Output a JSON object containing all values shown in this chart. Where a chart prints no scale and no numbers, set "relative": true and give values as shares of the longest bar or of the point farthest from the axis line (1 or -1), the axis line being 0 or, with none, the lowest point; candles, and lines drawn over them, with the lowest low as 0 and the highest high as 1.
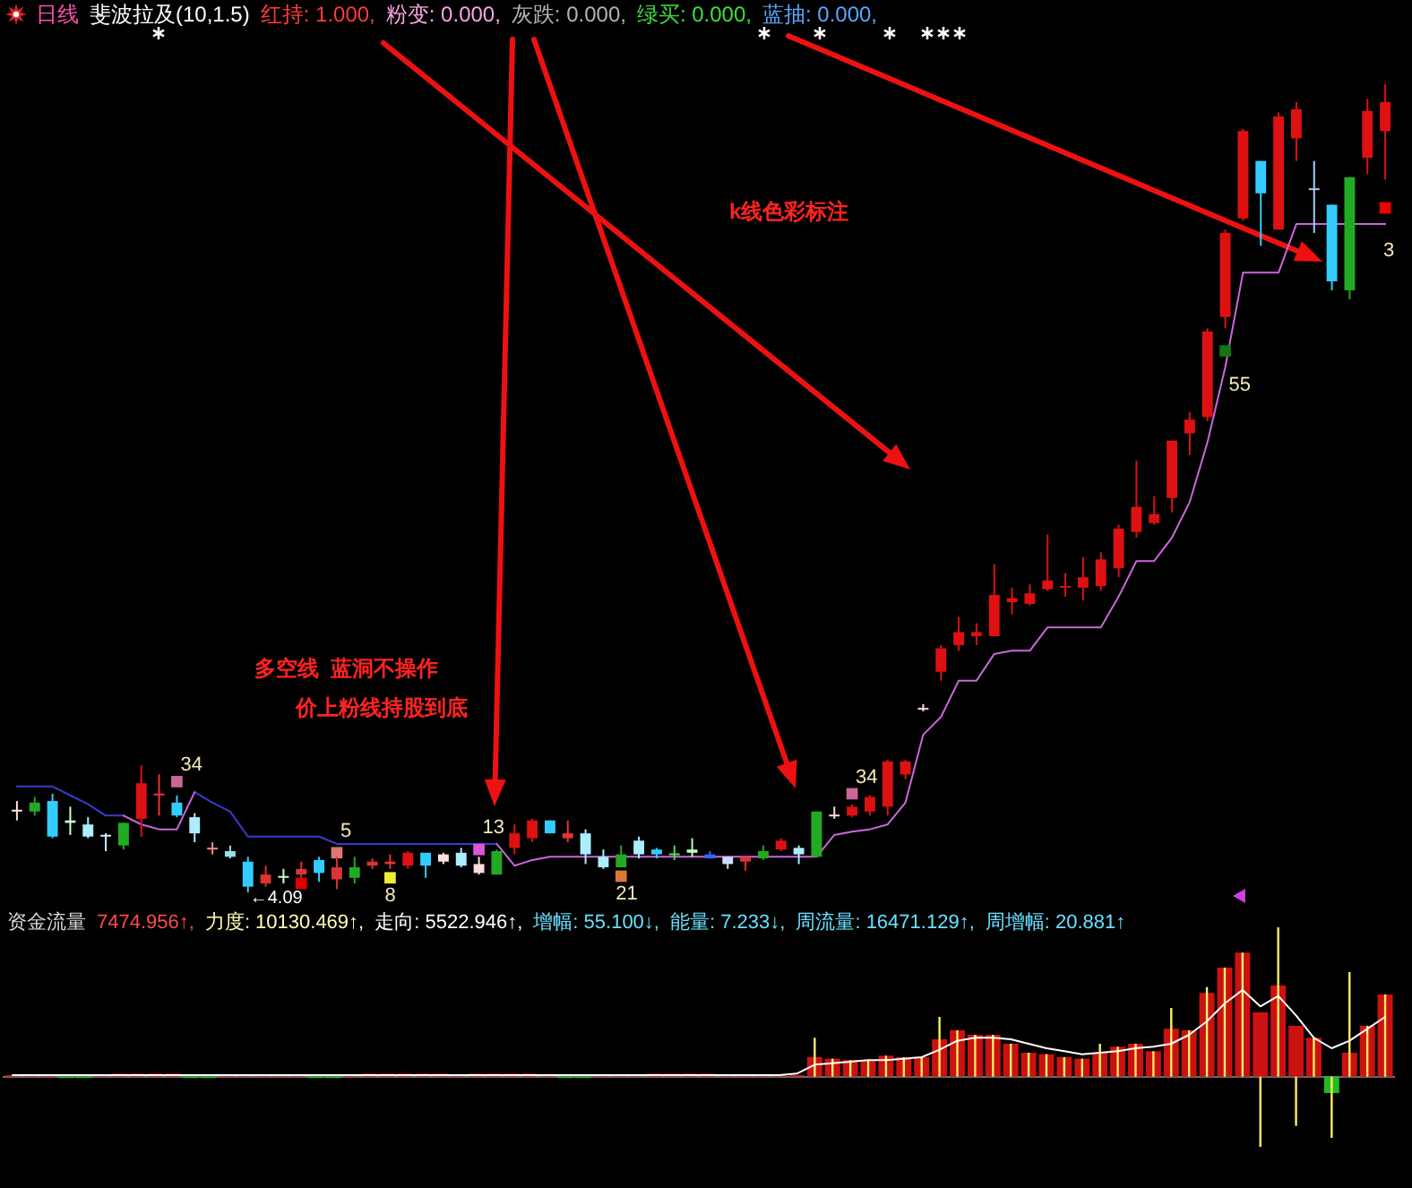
{
  "chart_data": [
    {
      "type": "candlestick",
      "title": "日线",
      "subtitle": "斐波拉及(10,1.5)",
      "relative": true,
      "categories": [
        null,
        null,
        null,
        null,
        null,
        null,
        null,
        null,
        null,
        null,
        null,
        null,
        null,
        null,
        null,
        null,
        null,
        null,
        null,
        null,
        null,
        null,
        null,
        null,
        null,
        null,
        null,
        null,
        null,
        null,
        null,
        null,
        null,
        null,
        null,
        null,
        null,
        null,
        null,
        null,
        null,
        null,
        null,
        null,
        null,
        null,
        null,
        null,
        null,
        null,
        null,
        null,
        null,
        null,
        null,
        null,
        null,
        null,
        null,
        null,
        null,
        null,
        null,
        null,
        null,
        null,
        null,
        null,
        null,
        null,
        null,
        null,
        null,
        null,
        null,
        null,
        null,
        null
      ],
      "ohlc": [
        [
          0.102,
          0.113,
          0.089,
          0.1
        ],
        [
          0.111,
          0.118,
          0.095,
          0.1
        ],
        [
          0.113,
          0.122,
          0.067,
          0.069
        ],
        [
          0.089,
          0.106,
          0.071,
          0.086
        ],
        [
          0.084,
          0.093,
          0.067,
          0.069
        ],
        [
          0.071,
          0.073,
          0.051,
          0.069
        ],
        [
          0.086,
          0.086,
          0.053,
          0.058
        ],
        [
          0.091,
          0.157,
          0.069,
          0.135
        ],
        [
          0.12,
          0.146,
          0.095,
          0.122
        ],
        [
          0.111,
          0.12,
          0.093,
          0.095
        ],
        [
          0.093,
          0.098,
          0.062,
          0.073
        ],
        [
          0.053,
          0.062,
          0.047,
          0.055
        ],
        [
          0.051,
          0.058,
          0.042,
          0.044
        ],
        [
          0.038,
          0.044,
          0,
          0.007
        ],
        [
          0.011,
          0.033,
          0.007,
          0.022
        ],
        [
          0.02,
          0.029,
          0.011,
          0.018
        ],
        [
          0.022,
          0.038,
          0.018,
          0.029
        ],
        [
          0.04,
          0.044,
          0.013,
          0.024
        ],
        [
          0.016,
          0.044,
          0.004,
          0.031
        ],
        [
          0.031,
          0.044,
          0.011,
          0.018
        ],
        [
          0.033,
          0.042,
          0.029,
          0.038
        ],
        [
          0.035,
          0.047,
          0.029,
          0.038
        ],
        [
          0.033,
          0.051,
          0.029,
          0.049
        ],
        [
          0.049,
          0.049,
          0.018,
          0.033
        ],
        [
          0.047,
          0.049,
          0.035,
          0.038
        ],
        [
          0.049,
          0.055,
          0.031,
          0.033
        ],
        [
          0.035,
          0.044,
          0.022,
          0.024
        ],
        [
          0.051,
          0.053,
          0.022,
          0.022
        ],
        [
          0.055,
          0.084,
          0.047,
          0.073
        ],
        [
          0.067,
          0.091,
          0.062,
          0.089
        ],
        [
          0.089,
          0.089,
          0.073,
          0.073
        ],
        [
          0.067,
          0.089,
          0.062,
          0.073
        ],
        [
          0.073,
          0.078,
          0.035,
          0.047
        ],
        [
          0.044,
          0.053,
          0.029,
          0.031
        ],
        [
          0.047,
          0.058,
          0.031,
          0.031
        ],
        [
          0.064,
          0.069,
          0.042,
          0.047
        ],
        [
          0.053,
          0.055,
          0.042,
          0.047
        ],
        [
          0.048,
          0.058,
          0.04,
          0.046
        ],
        [
          0.053,
          0.067,
          0.044,
          0.049
        ],
        [
          0.047,
          0.051,
          0.042,
          0.042
        ],
        [
          0.044,
          0.044,
          0.029,
          0.035
        ],
        [
          0.038,
          0.044,
          0.027,
          0.044
        ],
        [
          0.051,
          0.058,
          0.04,
          0.042
        ],
        [
          0.053,
          0.067,
          0.051,
          0.064
        ],
        [
          0.055,
          0.058,
          0.035,
          0.047
        ],
        [
          0.1,
          0.1,
          0.044,
          0.044
        ],
        [
          0.096,
          0.106,
          0.091,
          0.094
        ],
        [
          0.095,
          0.109,
          0.093,
          0.106
        ],
        [
          0.1,
          0.12,
          0.095,
          0.118
        ],
        [
          0.106,
          0.164,
          0.095,
          0.162
        ],
        [
          0.146,
          0.164,
          0.14,
          0.162
        ],
        [
          0.228,
          0.233,
          0.224,
          0.226
        ],
        [
          0.273,
          0.306,
          0.262,
          0.302
        ],
        [
          0.306,
          0.341,
          0.299,
          0.322
        ],
        [
          0.317,
          0.333,
          0.306,
          0.322
        ],
        [
          0.317,
          0.406,
          0.317,
          0.368
        ],
        [
          0.359,
          0.377,
          0.344,
          0.364
        ],
        [
          0.357,
          0.381,
          0.355,
          0.37
        ],
        [
          0.375,
          0.443,
          0.373,
          0.386
        ],
        [
          0.377,
          0.395,
          0.366,
          0.379
        ],
        [
          0.377,
          0.415,
          0.361,
          0.39
        ],
        [
          0.379,
          0.421,
          0.373,
          0.412
        ],
        [
          0.401,
          0.455,
          0.39,
          0.45
        ],
        [
          0.446,
          0.534,
          0.439,
          0.477
        ],
        [
          0.457,
          0.49,
          0.455,
          0.468
        ],
        [
          0.488,
          0.559,
          0.47,
          0.559
        ],
        [
          0.568,
          0.594,
          0.541,
          0.585
        ],
        [
          0.588,
          0.698,
          0.583,
          0.694
        ],
        [
          0.712,
          0.82,
          0.698,
          0.816
        ],
        [
          0.834,
          0.945,
          0.831,
          0.942
        ],
        [
          0.905,
          0.905,
          0.8,
          0.865
        ],
        [
          0.82,
          0.965,
          0.82,
          0.96
        ],
        [
          0.933,
          0.978,
          0.905,
          0.969
        ],
        [
          0.871,
          0.905,
          0.816,
          0.869
        ],
        [
          0.851,
          0.851,
          0.745,
          0.756
        ],
        [
          0.885,
          0.885,
          0.734,
          0.745
        ],
        [
          0.909,
          0.982,
          0.889,
          0.967
        ],
        [
          0.942,
          1,
          0.882,
          0.978
        ]
      ],
      "colors": [
        "#ffdddd",
        "#22aa22",
        "#33ccff",
        "#ccffcc",
        "#aaeeff",
        "#cceeff",
        "#22aa22",
        "#dd1111",
        "#ee3333",
        "#33ccff",
        "#aaeeff",
        "#ff8888",
        "#99ddee",
        "#33ccff",
        "#dd3333",
        "#ccffcc",
        "#dd3333",
        "#33ccff",
        "#dd3333",
        "#22aa22",
        "#dd3333",
        "#ee3333",
        "#dd1111",
        "#33ccff",
        "#ffdddd",
        "#aaeeff",
        "#ffdddd",
        "#22aa22",
        "#dd1111",
        "#dd1111",
        "#33ccff",
        "#ee3333",
        "#aaeeff",
        "#aaeeff",
        "#22aa22",
        "#aaeeff",
        "#33ccff",
        "#55dd55",
        "#bbffbb",
        "#3366ff",
        "#ccddff",
        "#dd3333",
        "#22aa22",
        "#dd1111",
        "#aaeeff",
        "#22aa22",
        "#ffdddd",
        "#dd1111",
        "#dd1111",
        "#dd1111",
        "#dd1111",
        "#ffdddd",
        "#dd1111",
        "#dd1111",
        "#dd1111",
        "#dd1111",
        "#dd1111",
        "#dd1111",
        "#dd1111",
        "#dd1111",
        "#dd1111",
        "#dd1111",
        "#dd1111",
        "#dd1111",
        "#dd1111",
        "#dd1111",
        "#dd1111",
        "#dd1111",
        "#dd1111",
        "#dd1111",
        "#33ccff",
        "#dd1111",
        "#dd1111",
        "#aaccff",
        "#33ccff",
        "#22aa22",
        "#dd1111",
        "#dd1111"
      ],
      "series": [
        {
          "type": "line",
          "color": "#3a3ad0",
          "values": [
            0.131,
            0.131,
            0.131,
            0.12,
            0.109,
            0.095,
            0.095,
            null,
            null,
            null,
            0.124,
            0.111,
            0.1,
            0.069,
            0.069,
            0.069,
            0.069,
            0.069,
            0.06,
            0.06,
            0.06,
            0.06,
            0.06,
            0.06,
            0.06,
            0.06,
            0.06,
            0.06,
            null,
            null,
            null,
            null,
            null,
            null,
            null,
            null,
            null,
            null,
            null,
            null,
            null,
            null,
            null,
            null,
            null,
            null,
            null,
            null,
            null,
            null,
            null,
            null,
            null,
            null,
            null,
            null,
            null,
            null,
            null,
            null,
            null,
            null,
            null,
            null,
            null,
            null,
            null,
            null,
            null,
            null,
            null,
            null,
            null,
            null,
            null,
            null,
            null,
            null
          ]
        },
        {
          "type": "line",
          "color": "#cc66dd",
          "values": [
            null,
            null,
            null,
            null,
            null,
            null,
            0.095,
            0.084,
            0.078,
            0.078,
            0.124,
            null,
            null,
            null,
            null,
            null,
            null,
            null,
            null,
            null,
            null,
            null,
            null,
            null,
            null,
            null,
            null,
            0.06,
            0.033,
            0.04,
            0.044,
            0.044,
            0.044,
            0.044,
            0.044,
            0.044,
            0.044,
            0.044,
            0.044,
            0.044,
            0.044,
            0.044,
            0.044,
            0.044,
            0.044,
            0.044,
            0.071,
            0.075,
            0.078,
            0.084,
            0.111,
            0.195,
            0.217,
            0.262,
            0.262,
            0.295,
            0.299,
            0.299,
            0.328,
            0.328,
            0.328,
            0.328,
            0.366,
            0.41,
            0.41,
            0.439,
            0.483,
            0.557,
            0.65,
            0.767,
            0.767,
            0.767,
            0.827,
            0.827,
            0.827,
            0.827,
            0.827,
            0.827
          ]
        },
        {
          "type": "scatter",
          "marker": "square",
          "colors": [
            null,
            null,
            null,
            null,
            null,
            null,
            null,
            null,
            null,
            "#cc6699",
            null,
            null,
            null,
            null,
            null,
            null,
            "#dd0000",
            null,
            "#dd7777",
            null,
            null,
            "#eeee33",
            null,
            null,
            null,
            null,
            "#dd55dd",
            null,
            null,
            null,
            null,
            null,
            null,
            null,
            "#dd7733",
            null,
            null,
            null,
            null,
            null,
            null,
            null,
            null,
            null,
            null,
            null,
            null,
            "#cc6699",
            null,
            null,
            null,
            null,
            null,
            null,
            null,
            null,
            null,
            null,
            null,
            null,
            null,
            null,
            null,
            null,
            null,
            null,
            null,
            null,
            "#117711",
            null,
            null,
            null,
            null,
            null,
            null,
            null,
            null,
            "#ee0000"
          ],
          "values": [
            null,
            null,
            null,
            null,
            null,
            null,
            null,
            null,
            null,
            0.137,
            null,
            null,
            null,
            null,
            null,
            null,
            0.011,
            null,
            0.049,
            null,
            null,
            0.018,
            null,
            null,
            null,
            null,
            0.053,
            null,
            null,
            null,
            null,
            null,
            null,
            null,
            0.02,
            null,
            null,
            null,
            null,
            null,
            null,
            null,
            null,
            null,
            null,
            null,
            null,
            0.122,
            null,
            null,
            null,
            null,
            null,
            null,
            null,
            null,
            null,
            null,
            null,
            null,
            null,
            null,
            null,
            null,
            null,
            null,
            null,
            null,
            0.67,
            null,
            null,
            null,
            null,
            null,
            null,
            null,
            null,
            0.847
          ]
        }
      ],
      "annotations": [
        "红持: 1.000,",
        "粉变: 0.000,",
        "灰跌: 0.000,",
        "绿买: 0.000,",
        "蓝抽: 0.000,",
        "k线色彩标注",
        "多空线  蓝洞不操作",
        "价上粉线持股到底",
        "34",
        "5",
        "←4.09",
        "8",
        "13",
        "21",
        "34",
        "55",
        "3"
      ]
    },
    {
      "type": "bar",
      "title": "资金流量",
      "relative": true,
      "categories": [
        null,
        null,
        null,
        null,
        null,
        null,
        null,
        null,
        null,
        null,
        null,
        null,
        null,
        null,
        null,
        null,
        null,
        null,
        null,
        null,
        null,
        null,
        null,
        null,
        null,
        null,
        null,
        null,
        null,
        null,
        null,
        null,
        null,
        null,
        null,
        null,
        null,
        null,
        null,
        null,
        null,
        null,
        null,
        null,
        null,
        null,
        null,
        null,
        null,
        null,
        null,
        null,
        null,
        null,
        null,
        null,
        null,
        null,
        null,
        null,
        null,
        null,
        null,
        null,
        null,
        null,
        null,
        null,
        null,
        null,
        null,
        null,
        null,
        null,
        null,
        null,
        null,
        null
      ],
      "series": [
        {
          "type": "bar",
          "colors": [
            "#cc1111",
            "#cc1111",
            "#cc1111",
            "#22bb22",
            "#22bb22",
            "#cc1111",
            "#cc1111",
            "#cc1111",
            "#cc1111",
            "#cc1111",
            "#22bb22",
            "#22bb22",
            "#cc1111",
            "#cc1111",
            "#cc1111",
            "#cc1111",
            "#cc1111",
            "#22bb22",
            "#22bb22",
            "#cc1111",
            "#cc1111",
            "#cc1111",
            "#cc1111",
            "#cc1111",
            "#cc1111",
            "#cc1111",
            "#cc1111",
            "#cc1111",
            "#cc1111",
            "#cc1111",
            "#cc1111",
            "#22bb22",
            "#22bb22",
            "#cc1111",
            "#cc1111",
            "#cc1111",
            "#cc1111",
            "#cc1111",
            "#cc1111",
            "#cc1111",
            "#cc1111",
            "#cc1111",
            "#cc1111",
            "#cc1111",
            "#cc1111",
            "#cc1111",
            "#cc1111",
            "#cc1111",
            "#cc1111",
            "#cc1111",
            "#cc1111",
            "#cc1111",
            "#cc1111",
            "#cc1111",
            "#cc1111",
            "#cc1111",
            "#cc1111",
            "#cc1111",
            "#cc1111",
            "#cc1111",
            "#cc1111",
            "#cc1111",
            "#cc1111",
            "#cc1111",
            "#cc1111",
            "#cc1111",
            "#cc1111",
            "#cc1111",
            "#cc1111",
            "#cc1111",
            "#cc1111",
            "#cc1111",
            "#cc1111",
            "#cc1111",
            "#22bb22",
            "#cc1111",
            "#cc1111",
            "#cc1111"
          ],
          "values": [
            0.01,
            0.01,
            0.01,
            -0.01,
            -0.01,
            0.01,
            0.02,
            0.02,
            0.02,
            0.02,
            -0.01,
            -0.01,
            0.01,
            0.01,
            0.01,
            0.01,
            0.01,
            -0.01,
            -0.01,
            0.01,
            0.02,
            0.02,
            0.02,
            0.02,
            0.02,
            0.01,
            0.02,
            0.02,
            0.02,
            0.02,
            0.01,
            -0.01,
            -0.01,
            0.01,
            0.01,
            0.01,
            0.02,
            0.02,
            0.02,
            0.02,
            0.01,
            0.01,
            0.01,
            0.01,
            0.01,
            0.13,
            0.12,
            0.11,
            0.11,
            0.14,
            0.13,
            0.13,
            0.25,
            0.31,
            0.28,
            0.28,
            0.22,
            0.16,
            0.15,
            0.13,
            0.12,
            0.16,
            0.2,
            0.22,
            0.17,
            0.32,
            0.31,
            0.56,
            0.73,
            0.83,
            0.43,
            0.61,
            0.34,
            0.26,
            -0.11,
            0.16,
            0.34,
            0.55
          ]
        },
        {
          "type": "bar",
          "color": "#ffee66",
          "values": [
            null,
            null,
            null,
            null,
            null,
            null,
            null,
            null,
            null,
            null,
            null,
            null,
            null,
            null,
            null,
            null,
            null,
            null,
            null,
            null,
            null,
            null,
            null,
            null,
            null,
            null,
            null,
            null,
            null,
            null,
            null,
            null,
            null,
            null,
            null,
            null,
            null,
            null,
            null,
            null,
            null,
            null,
            null,
            null,
            null,
            0.26,
            0.12,
            0.11,
            0.11,
            0.14,
            0.13,
            0.13,
            0.4,
            0.31,
            0.28,
            0.28,
            0.22,
            0.16,
            0.15,
            0.13,
            0.12,
            0.22,
            0.2,
            0.22,
            0.17,
            0.46,
            0.31,
            0.6,
            0.73,
            0.83,
            -0.47,
            1,
            -0.33,
            0.26,
            -0.41,
            0.7,
            0.34,
            0.55
          ]
        },
        {
          "type": "line",
          "color": "#ffffff",
          "values": [
            0.01,
            0.01,
            0.01,
            0.01,
            0.01,
            0.01,
            0.01,
            0.01,
            0.01,
            0.01,
            0.01,
            0.01,
            0.01,
            0.01,
            0.01,
            0.01,
            0.01,
            0.01,
            0.01,
            0.01,
            0.01,
            0.01,
            0.01,
            0.01,
            0.01,
            0.01,
            0.01,
            0.01,
            0.01,
            0.01,
            0.01,
            0.01,
            0.01,
            0.01,
            0.01,
            0.01,
            0.01,
            0.01,
            0.01,
            0.01,
            0.01,
            0.01,
            0.01,
            0.01,
            0.02,
            0.08,
            0.09,
            0.1,
            0.11,
            0.11,
            0.12,
            0.13,
            0.18,
            0.24,
            0.26,
            0.26,
            0.25,
            0.22,
            0.19,
            0.17,
            0.15,
            0.16,
            0.17,
            0.19,
            0.2,
            0.22,
            0.28,
            0.37,
            0.49,
            0.58,
            0.47,
            0.54,
            0.41,
            0.26,
            0.19,
            0.24,
            0.32,
            0.4
          ]
        }
      ],
      "annotations": [
        "7474.956↑,",
        "力度: 10130.469↑,",
        "走向: 5522.946↑,",
        "增幅: 55.100↓,",
        "能量: 7.233↓,",
        "周流量: 16471.129↑,",
        "周增幅: 20.881↑"
      ]
    }
  ]
}
